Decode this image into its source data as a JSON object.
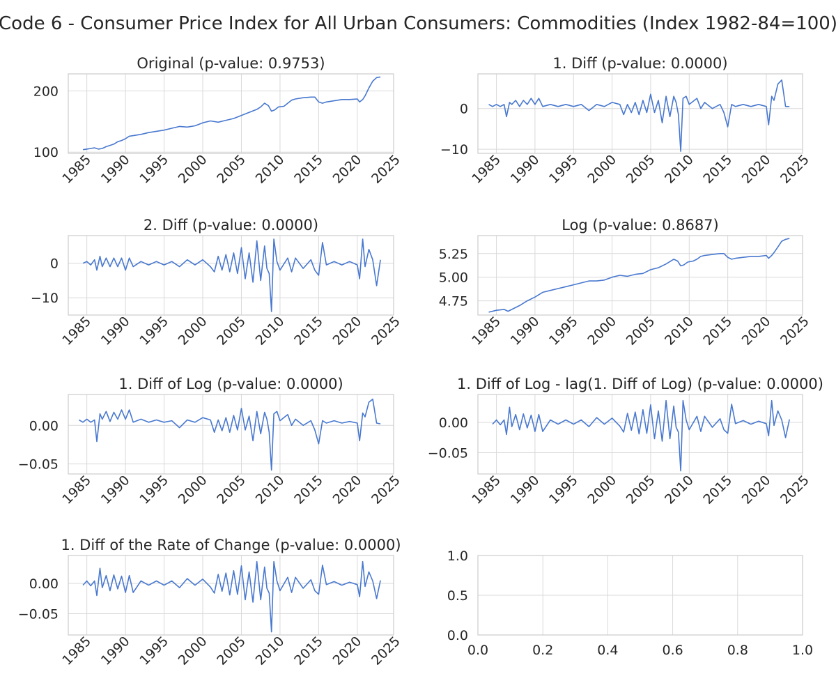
{
  "figure": {
    "suptitle": "Code 6 - Consumer Price Index for All Urban Consumers: Commodities (Index 1982-84=100)",
    "line_color": "#4878cf",
    "grid_color": "#d9d9d9",
    "frame_color": "#cccccc"
  },
  "chart_data": [
    {
      "id": "original",
      "type": "line",
      "title": "Original (p-value: 0.9753)",
      "xlim": [
        1982.6,
        2024.7
      ],
      "ylim": [
        98,
        228
      ],
      "xticks": [
        1985,
        1990,
        1995,
        2000,
        2005,
        2010,
        2015,
        2020,
        2025
      ],
      "yticks": [
        100,
        200
      ],
      "ytick_labels": [
        "100",
        "200"
      ],
      "grid": true,
      "x": [
        1984.5,
        1985.0,
        1985.5,
        1986.0,
        1986.5,
        1987.0,
        1987.5,
        1988.0,
        1988.5,
        1989.0,
        1989.5,
        1990.0,
        1990.5,
        1991.0,
        1992.0,
        1993.0,
        1994.0,
        1995.0,
        1996.0,
        1997.0,
        1998.0,
        1999.0,
        2000.0,
        2001.0,
        2002.0,
        2003.0,
        2004.0,
        2005.0,
        2006.0,
        2007.0,
        2007.5,
        2008.0,
        2008.5,
        2008.9,
        2009.3,
        2009.8,
        2010.5,
        2011.0,
        2011.5,
        2012.0,
        2013.0,
        2014.0,
        2014.5,
        2015.0,
        2015.5,
        2016.0,
        2017.0,
        2018.0,
        2019.0,
        2020.0,
        2020.3,
        2020.7,
        2021.0,
        2021.5,
        2022.0,
        2022.5,
        2023.0
      ],
      "y": [
        104,
        105,
        106,
        107,
        105,
        106,
        109,
        111,
        113,
        117,
        119,
        122,
        126,
        127,
        129,
        132,
        134,
        136,
        139,
        142,
        141,
        143,
        148,
        151,
        149,
        152,
        155,
        160,
        165,
        170,
        174,
        180,
        176,
        167,
        169,
        174,
        175,
        180,
        185,
        187,
        189,
        190,
        190,
        182,
        180,
        182,
        184,
        186,
        186,
        187,
        182,
        186,
        192,
        205,
        216,
        222,
        223
      ]
    },
    {
      "id": "diff1",
      "type": "line",
      "title": "1. Diff (p-value: 0.0000)",
      "xlim": [
        1982.6,
        2024.7
      ],
      "ylim": [
        -11,
        8.5
      ],
      "xticks": [
        1985,
        1990,
        1995,
        2000,
        2005,
        2010,
        2015,
        2020,
        2025
      ],
      "yticks": [
        -10,
        0
      ],
      "ytick_labels": [
        "−10",
        "0"
      ],
      "grid": true,
      "x": [
        1984.0,
        1984.5,
        1985.0,
        1985.5,
        1986.0,
        1986.3,
        1986.7,
        1987.0,
        1987.5,
        1988.0,
        1988.5,
        1989.0,
        1989.5,
        1990.0,
        1990.5,
        1991.0,
        1992.0,
        1993.0,
        1994.0,
        1995.0,
        1996.0,
        1997.0,
        1998.0,
        1999.0,
        2000.0,
        2001.0,
        2001.5,
        2002.0,
        2002.5,
        2003.0,
        2003.5,
        2004.0,
        2004.5,
        2005.0,
        2005.5,
        2006.0,
        2006.5,
        2007.0,
        2007.5,
        2008.0,
        2008.3,
        2008.6,
        2008.9,
        2009.2,
        2009.6,
        2010.0,
        2011.0,
        2011.5,
        2012.0,
        2013.0,
        2014.0,
        2014.5,
        2015.0,
        2015.5,
        2016.0,
        2017.0,
        2018.0,
        2019.0,
        2020.0,
        2020.3,
        2020.7,
        2021.0,
        2021.5,
        2022.0,
        2022.5,
        2023.0
      ],
      "y": [
        1,
        0.5,
        1,
        0.5,
        1,
        -2,
        1.5,
        1,
        2,
        0.5,
        2,
        1,
        2.5,
        1,
        2.5,
        0.5,
        1,
        0.5,
        1,
        0.5,
        1,
        -0.5,
        1,
        0.5,
        1.5,
        1,
        -1.5,
        1,
        -1,
        1.5,
        -1.5,
        2,
        -1,
        3.5,
        -1,
        2,
        -3.5,
        3,
        -2,
        3,
        1.5,
        -1.5,
        -10.5,
        2.5,
        3,
        1,
        2.5,
        0,
        1.5,
        0,
        1,
        -1,
        -4.5,
        1,
        0.5,
        1,
        0.5,
        1,
        0.5,
        -4,
        3,
        2,
        6,
        7,
        0.5,
        0.5
      ]
    },
    {
      "id": "diff2",
      "type": "line",
      "title": "2. Diff (p-value: 0.0000)",
      "xlim": [
        1982.6,
        2024.7
      ],
      "ylim": [
        -15,
        8
      ],
      "xticks": [
        1985,
        1990,
        1995,
        2000,
        2005,
        2010,
        2015,
        2020,
        2025
      ],
      "yticks": [
        -10,
        0
      ],
      "ytick_labels": [
        "−10",
        "0"
      ],
      "grid": true,
      "x": [
        1984.5,
        1985.0,
        1985.5,
        1986.0,
        1986.3,
        1986.7,
        1987.0,
        1987.5,
        1988.0,
        1988.5,
        1989.0,
        1989.5,
        1990.0,
        1990.5,
        1991.0,
        1992.0,
        1993.0,
        1994.0,
        1995.0,
        1996.0,
        1997.0,
        1998.0,
        1999.0,
        2000.0,
        2001.0,
        2001.5,
        2002.0,
        2002.5,
        2003.0,
        2003.5,
        2004.0,
        2004.5,
        2005.0,
        2005.5,
        2006.0,
        2006.5,
        2007.0,
        2007.5,
        2008.0,
        2008.3,
        2008.6,
        2008.9,
        2009.2,
        2009.6,
        2010.0,
        2011.0,
        2011.5,
        2012.0,
        2013.0,
        2014.0,
        2014.5,
        2015.0,
        2015.5,
        2016.0,
        2017.0,
        2018.0,
        2019.0,
        2020.0,
        2020.3,
        2020.7,
        2021.0,
        2021.5,
        2022.0,
        2022.5,
        2023.0
      ],
      "y": [
        0,
        0.5,
        -0.5,
        1,
        -2,
        2,
        -1,
        1.5,
        -1,
        1.5,
        -1,
        1.5,
        -2,
        1.5,
        -1,
        0.5,
        -0.5,
        0.5,
        -0.5,
        0.5,
        -1,
        1,
        -0.5,
        1,
        -1,
        -2.5,
        2,
        -2,
        2.5,
        -2.5,
        3,
        -3,
        4.5,
        -4.5,
        3,
        -5.5,
        6.5,
        -5,
        5,
        -1.5,
        -3,
        -14,
        7,
        0.5,
        -2,
        1.5,
        -2.5,
        1.5,
        -1.5,
        1,
        -2,
        -3.5,
        6,
        -0.5,
        0.5,
        -0.5,
        0.5,
        -0.5,
        -4.5,
        7,
        -1,
        4,
        1,
        -6.5,
        1
      ]
    },
    {
      "id": "log",
      "type": "line",
      "title": "Log (p-value: 0.8687)",
      "xlim": [
        1982.6,
        2024.7
      ],
      "ylim": [
        4.6,
        5.44
      ],
      "xticks": [
        1985,
        1990,
        1995,
        2000,
        2005,
        2010,
        2015,
        2020,
        2025
      ],
      "yticks": [
        4.75,
        5.0,
        5.25
      ],
      "ytick_labels": [
        "4.75",
        "5.00",
        "5.25"
      ],
      "grid": true,
      "x": [
        1984.0,
        1985.0,
        1986.0,
        1986.5,
        1987.0,
        1988.0,
        1989.0,
        1990.0,
        1991.0,
        1992.0,
        1993.0,
        1994.0,
        1995.0,
        1996.0,
        1997.0,
        1998.0,
        1999.0,
        2000.0,
        2001.0,
        2002.0,
        2003.0,
        2004.0,
        2005.0,
        2006.0,
        2007.0,
        2008.0,
        2008.5,
        2008.9,
        2009.3,
        2009.8,
        2010.5,
        2011.0,
        2011.5,
        2012.0,
        2013.0,
        2014.0,
        2014.5,
        2015.0,
        2015.5,
        2016.0,
        2017.0,
        2018.0,
        2019.0,
        2020.0,
        2020.3,
        2020.7,
        2021.0,
        2021.5,
        2022.0,
        2022.5,
        2023.0
      ],
      "y": [
        4.63,
        4.65,
        4.66,
        4.64,
        4.66,
        4.7,
        4.75,
        4.79,
        4.84,
        4.86,
        4.88,
        4.9,
        4.92,
        4.94,
        4.96,
        4.96,
        4.97,
        5.0,
        5.02,
        5.01,
        5.03,
        5.04,
        5.08,
        5.1,
        5.14,
        5.19,
        5.17,
        5.12,
        5.13,
        5.16,
        5.17,
        5.19,
        5.22,
        5.23,
        5.24,
        5.25,
        5.25,
        5.21,
        5.19,
        5.2,
        5.21,
        5.22,
        5.22,
        5.23,
        5.2,
        5.23,
        5.26,
        5.32,
        5.38,
        5.4,
        5.41
      ]
    },
    {
      "id": "diff-log",
      "type": "line",
      "title": "1. Diff of Log (p-value: 0.0000)",
      "xlim": [
        1982.6,
        2024.7
      ],
      "ylim": [
        -0.063,
        0.04
      ],
      "xticks": [
        1985,
        1990,
        1995,
        2000,
        2005,
        2010,
        2015,
        2020,
        2025
      ],
      "yticks": [
        -0.05,
        0.0
      ],
      "ytick_labels": [
        "−0.05",
        "0.00"
      ],
      "grid": true,
      "x": [
        1984.0,
        1984.5,
        1985.0,
        1985.5,
        1986.0,
        1986.3,
        1986.7,
        1987.0,
        1987.5,
        1988.0,
        1988.5,
        1989.0,
        1989.5,
        1990.0,
        1990.5,
        1991.0,
        1992.0,
        1993.0,
        1994.0,
        1995.0,
        1996.0,
        1997.0,
        1998.0,
        1999.0,
        2000.0,
        2001.0,
        2001.5,
        2002.0,
        2002.5,
        2003.0,
        2003.5,
        2004.0,
        2004.5,
        2005.0,
        2005.5,
        2006.0,
        2006.5,
        2007.0,
        2007.5,
        2008.0,
        2008.3,
        2008.6,
        2008.9,
        2009.2,
        2009.6,
        2010.0,
        2011.0,
        2011.5,
        2012.0,
        2013.0,
        2014.0,
        2014.5,
        2015.0,
        2015.5,
        2016.0,
        2017.0,
        2018.0,
        2019.0,
        2020.0,
        2020.3,
        2020.7,
        2021.0,
        2021.5,
        2022.0,
        2022.5,
        2023.0
      ],
      "y": [
        0.007,
        0.004,
        0.008,
        0.004,
        0.007,
        -0.021,
        0.015,
        0.008,
        0.018,
        0.005,
        0.017,
        0.008,
        0.02,
        0.008,
        0.02,
        0.004,
        0.008,
        0.004,
        0.007,
        0.004,
        0.006,
        -0.003,
        0.007,
        0.004,
        0.01,
        0.007,
        -0.009,
        0.007,
        -0.007,
        0.01,
        -0.009,
        0.013,
        -0.006,
        0.022,
        -0.006,
        0.012,
        -0.02,
        0.018,
        -0.011,
        0.017,
        0.008,
        -0.009,
        -0.058,
        0.015,
        0.018,
        0.006,
        0.014,
        0.0,
        0.008,
        0.0,
        0.006,
        -0.006,
        -0.024,
        0.006,
        0.003,
        0.006,
        0.003,
        0.005,
        0.003,
        -0.02,
        0.016,
        0.011,
        0.03,
        0.034,
        0.003,
        0.002
      ]
    },
    {
      "id": "diff-log-lag",
      "type": "line",
      "title": "1. Diff of Log - lag(1. Diff of Log) (p-value: 0.0000)",
      "xlim": [
        1982.6,
        2024.7
      ],
      "ylim": [
        -0.085,
        0.046
      ],
      "xticks": [
        1985,
        1990,
        1995,
        2000,
        2005,
        2010,
        2015,
        2020,
        2025
      ],
      "yticks": [
        -0.05,
        0.0
      ],
      "ytick_labels": [
        "−0.05",
        "0.00"
      ],
      "grid": true,
      "x": [
        1984.5,
        1985.0,
        1985.5,
        1986.0,
        1986.3,
        1986.7,
        1987.0,
        1987.5,
        1988.0,
        1988.5,
        1989.0,
        1989.5,
        1990.0,
        1990.5,
        1991.0,
        1992.0,
        1993.0,
        1994.0,
        1995.0,
        1996.0,
        1997.0,
        1998.0,
        1999.0,
        2000.0,
        2001.0,
        2001.5,
        2002.0,
        2002.5,
        2003.0,
        2003.5,
        2004.0,
        2004.5,
        2005.0,
        2005.5,
        2006.0,
        2006.5,
        2007.0,
        2007.5,
        2008.0,
        2008.3,
        2008.6,
        2008.9,
        2009.2,
        2009.6,
        2010.0,
        2011.0,
        2011.5,
        2012.0,
        2013.0,
        2014.0,
        2014.5,
        2015.0,
        2015.5,
        2016.0,
        2017.0,
        2018.0,
        2019.0,
        2020.0,
        2020.3,
        2020.7,
        2021.0,
        2021.5,
        2022.0,
        2022.5,
        2023.0
      ],
      "y": [
        -0.003,
        0.004,
        -0.004,
        0.004,
        -0.02,
        0.025,
        -0.007,
        0.013,
        -0.012,
        0.014,
        -0.009,
        0.012,
        -0.015,
        0.013,
        -0.015,
        0.004,
        -0.003,
        0.004,
        -0.003,
        0.004,
        -0.007,
        0.008,
        -0.003,
        0.007,
        -0.006,
        -0.016,
        0.015,
        -0.013,
        0.017,
        -0.019,
        0.021,
        -0.018,
        0.029,
        -0.027,
        0.019,
        -0.031,
        0.036,
        -0.027,
        0.027,
        -0.008,
        -0.016,
        -0.08,
        0.036,
        0.004,
        -0.012,
        0.01,
        -0.015,
        0.01,
        -0.008,
        0.006,
        -0.012,
        -0.018,
        0.03,
        -0.002,
        0.003,
        -0.003,
        0.002,
        -0.002,
        -0.022,
        0.036,
        -0.005,
        0.019,
        0.004,
        -0.025,
        0.005
      ]
    },
    {
      "id": "diff-rate",
      "type": "line",
      "title": "1. Diff of the Rate of Change (p-value: 0.0000)",
      "xlim": [
        1982.6,
        2024.7
      ],
      "ylim": [
        -0.085,
        0.046
      ],
      "xticks": [
        1985,
        1990,
        1995,
        2000,
        2005,
        2010,
        2015,
        2020,
        2025
      ],
      "yticks": [
        -0.05,
        0.0
      ],
      "ytick_labels": [
        "−0.05",
        "0.00"
      ],
      "grid": true,
      "x": [
        1984.5,
        1985.0,
        1985.5,
        1986.0,
        1986.3,
        1986.7,
        1987.0,
        1987.5,
        1988.0,
        1988.5,
        1989.0,
        1989.5,
        1990.0,
        1990.5,
        1991.0,
        1992.0,
        1993.0,
        1994.0,
        1995.0,
        1996.0,
        1997.0,
        1998.0,
        1999.0,
        2000.0,
        2001.0,
        2001.5,
        2002.0,
        2002.5,
        2003.0,
        2003.5,
        2004.0,
        2004.5,
        2005.0,
        2005.5,
        2006.0,
        2006.5,
        2007.0,
        2007.5,
        2008.0,
        2008.3,
        2008.6,
        2008.9,
        2009.2,
        2009.6,
        2010.0,
        2011.0,
        2011.5,
        2012.0,
        2013.0,
        2014.0,
        2014.5,
        2015.0,
        2015.5,
        2016.0,
        2017.0,
        2018.0,
        2019.0,
        2020.0,
        2020.3,
        2020.7,
        2021.0,
        2021.5,
        2022.0,
        2022.5,
        2023.0
      ],
      "y": [
        -0.003,
        0.004,
        -0.004,
        0.004,
        -0.02,
        0.025,
        -0.007,
        0.013,
        -0.012,
        0.014,
        -0.009,
        0.012,
        -0.015,
        0.013,
        -0.015,
        0.004,
        -0.003,
        0.004,
        -0.003,
        0.004,
        -0.007,
        0.008,
        -0.003,
        0.007,
        -0.006,
        -0.016,
        0.015,
        -0.013,
        0.017,
        -0.019,
        0.021,
        -0.018,
        0.029,
        -0.027,
        0.019,
        -0.031,
        0.036,
        -0.027,
        0.027,
        -0.008,
        -0.016,
        -0.08,
        0.036,
        0.004,
        -0.012,
        0.01,
        -0.015,
        0.01,
        -0.008,
        0.006,
        -0.012,
        -0.018,
        0.03,
        -0.002,
        0.003,
        -0.003,
        0.002,
        -0.002,
        -0.022,
        0.036,
        -0.005,
        0.019,
        0.004,
        -0.025,
        0.005
      ]
    },
    {
      "id": "empty",
      "type": "line",
      "title": "",
      "xlim": [
        0,
        1
      ],
      "ylim": [
        0,
        1
      ],
      "xticks": [
        0.0,
        0.2,
        0.4,
        0.6,
        0.8,
        1.0
      ],
      "xtick_labels": [
        "0.0",
        "0.2",
        "0.4",
        "0.6",
        "0.8",
        "1.0"
      ],
      "yticks": [
        0.0,
        0.5,
        1.0
      ],
      "ytick_labels": [
        "0.0",
        "0.5",
        "1.0"
      ],
      "grid": true,
      "x": [],
      "y": []
    }
  ]
}
